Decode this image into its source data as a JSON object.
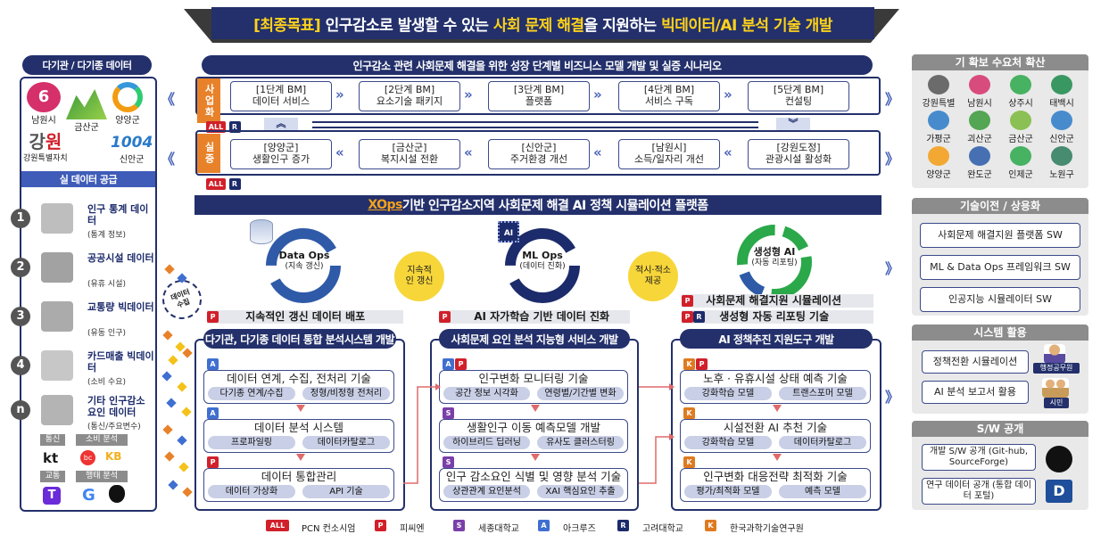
{
  "goal": {
    "prefix": "[최종목표]",
    "text1": " 인구감소로 발생할 수 있는 ",
    "hl1": "사회 문제 해결",
    "text2": "을 지원하는 ",
    "hl2": "빅데이터/AI 분석 기술 개발"
  },
  "left": {
    "title": "다기관 / 다기종 데이터",
    "logos": [
      "남원시",
      "금산군",
      "양양군",
      "강원특별자치",
      "신안군"
    ],
    "supply": "실 데이터 공급",
    "items": [
      {
        "num": "1",
        "title": "인구 통계 데이터",
        "sub": "(통계 정보)"
      },
      {
        "num": "2",
        "title": "공공시설 데이터",
        "sub": "(유휴 시설)"
      },
      {
        "num": "3",
        "title": "교통량 빅데이터",
        "sub": "(유동 인구)"
      },
      {
        "num": "4",
        "title": "카드매출 빅데이터",
        "sub": "(소비 수요)"
      },
      {
        "num": "n",
        "title": "기타 인구감소 요인 데이터",
        "sub": "(통신/주요변수)"
      }
    ],
    "tags": [
      "통신",
      "소비 분석",
      "교통",
      "행태 분석"
    ],
    "collect": "데이터 수집"
  },
  "bm": {
    "title": "인구감소 관련 사회문제 해결을 위한 성장 단계별 비즈니스 모델 개발 및 실증 시나리오",
    "row1_label": "사업화",
    "row1": [
      [
        "[1단계 BM]",
        "데이터 서비스"
      ],
      [
        "[2단계 BM]",
        "요소기술 패키지"
      ],
      [
        "[3단계 BM]",
        "플랫폼"
      ],
      [
        "[4단계 BM]",
        "서비스 구독"
      ],
      [
        "[5단계 BM]",
        "컨설팅"
      ]
    ],
    "row2_label": "실증",
    "row2": [
      [
        "[양양군]",
        "생활인구 증가"
      ],
      [
        "[금산군]",
        "복지시설 전환"
      ],
      [
        "[신안군]",
        "주거환경 개선"
      ],
      [
        "[남원시]",
        "소득/일자리 개선"
      ],
      [
        "[강원도정]",
        "관광시설 활성화"
      ]
    ]
  },
  "platform": {
    "xops": "XOps",
    "title": "기반 인구감소지역 사회문제 해결 AI 정책 시뮬레이션 플랫폼"
  },
  "cycles": [
    {
      "name": "Data Ops",
      "sub": "(지속 갱신)"
    },
    {
      "name": "ML Ops",
      "sub": "(데이터 진화)"
    },
    {
      "name": "생성형 AI",
      "sub": "(자동 리포팅)"
    }
  ],
  "mid_labels": [
    "지속적인 갱신",
    "적시·적소 제공"
  ],
  "features": [
    "지속적인 갱신 데이터 배포",
    "AI 자가학습 기반 데이터 진화",
    "사회문제 해결지원 시뮬레이션",
    "생성형 자동 리포팅 기술"
  ],
  "cols": [
    {
      "title": "다기관, 다기종 데이터 통합 분석시스템 개발",
      "items": [
        {
          "t": "데이터 연계, 수집, 전처리 기술",
          "p": [
            "다기종 연계/수집",
            "정형/비정형 전처리"
          ]
        },
        {
          "t": "데이터 분석 시스템",
          "p": [
            "프로파일링",
            "데이터카탈로그"
          ]
        },
        {
          "t": "데이터 통합관리",
          "p": [
            "데이터 가상화",
            "API 기술"
          ]
        }
      ]
    },
    {
      "title": "사회문제 요인 분석 지능형 서비스 개발",
      "items": [
        {
          "t": "인구변화 모니터링 기술",
          "p": [
            "공간 정보 시각화",
            "연령별/기간별 변화"
          ]
        },
        {
          "t": "생활인구 이동 예측모델 개발",
          "p": [
            "하이브리드 딥러닝",
            "유사도 클러스터링"
          ]
        },
        {
          "t": "인구 감소요인 식별 및 영향 분석 기술",
          "p": [
            "상관관계 요인분석",
            "XAI 핵심요인 추출"
          ]
        }
      ]
    },
    {
      "title": "AI 정책추진 지원도구 개발",
      "items": [
        {
          "t": "노후 · 유휴시설 상태 예측 기술",
          "p": [
            "강화학습 모델",
            "트랜스포머 모델"
          ]
        },
        {
          "t": "시설전환 AI 추천 기술",
          "p": [
            "강화학습 모델",
            "데이터카탈로그"
          ]
        },
        {
          "t": "인구변화 대응전략 최적화 기술",
          "p": [
            "평가/최적화 모델",
            "예측 모델"
          ]
        }
      ]
    }
  ],
  "right": {
    "demand_title": "기 확보 수요처 확산",
    "demand": [
      "강원특별",
      "남원시",
      "상주시",
      "태백시",
      "가평군",
      "괴산군",
      "금산군",
      "신안군",
      "양양군",
      "완도군",
      "인제군",
      "노원구"
    ],
    "tech_title": "기술이전 / 상용화",
    "tech": [
      "사회문제 해결지원 플랫폼 SW",
      "ML & Data Ops 프레임워크 SW",
      "인공지능 시뮬레이터 SW"
    ],
    "sys_title": "시스템 활용",
    "sys": [
      "정책전환 시뮬레이션",
      "AI 분석 보고서 활용"
    ],
    "sys_users": [
      "행정공무원",
      "시민"
    ],
    "sw_title": "S/W 공개",
    "sw": [
      "개발 S/W 공개 (Git-hub, SourceForge)",
      "연구 데이터 공개 (통합 데이터 포털)"
    ]
  },
  "legend": [
    {
      "b": "ALL",
      "t": "PCN 컨소시엄"
    },
    {
      "b": "P",
      "t": "피씨엔"
    },
    {
      "b": "S",
      "t": "세종대학교"
    },
    {
      "b": "A",
      "t": "아크루즈"
    },
    {
      "b": "R",
      "t": "고려대학교"
    },
    {
      "b": "K",
      "t": "한국과학기술연구원"
    }
  ],
  "colors": {
    "navy": "#23306b",
    "orange": "#e8822a",
    "red": "#d1202a",
    "blue": "#3f6fd1",
    "purple": "#7a3fa8",
    "k": "#e07a1f"
  }
}
